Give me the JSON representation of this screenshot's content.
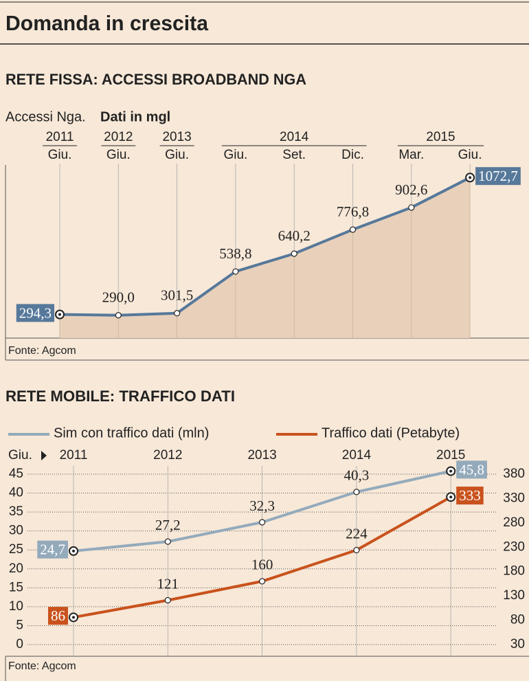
{
  "title": "Domanda in crescita",
  "chart_data": [
    {
      "type": "area",
      "title": "RETE FISSA: ACCESSI BROADBAND NGA",
      "subtitle": "Accessi Nga.",
      "unit_note": "Dati in mgl",
      "years": [
        "2011",
        "2012",
        "2013",
        "2014",
        null,
        null,
        "2015",
        null
      ],
      "categories": [
        "Giu.",
        "Giu.",
        "Giu.",
        "Giu.",
        "Set.",
        "Dic.",
        "Mar.",
        "Giu."
      ],
      "values": [
        294.3,
        290.0,
        301.5,
        538.8,
        640.2,
        776.8,
        902.6,
        1072.7
      ],
      "value_labels": [
        "294,3",
        "290,0",
        "301,5",
        "538,8",
        "640,2",
        "776,8",
        "902,6",
        "1072,7"
      ],
      "color": "#56789a",
      "fill": "#e8d0ba",
      "ylim": [
        160,
        1340
      ],
      "source": "Fonte: Agcom"
    },
    {
      "type": "line",
      "title": "RETE MOBILE: TRAFFICO DATI",
      "x_label": "Giu.",
      "categories": [
        "2011",
        "2012",
        "2013",
        "2014",
        "2015"
      ],
      "series": [
        {
          "name": "Sim con traffico dati (mln)",
          "color": "#93aabb",
          "values": [
            24.7,
            27.2,
            32.3,
            40.3,
            45.8
          ],
          "value_labels": [
            "24,7",
            "27,2",
            "32,3",
            "40,3",
            "45,8"
          ]
        },
        {
          "name": "Traffico dati (Petabyte)",
          "color": "#c9521c",
          "axis": "y2",
          "values": [
            86,
            121,
            160,
            224,
            333
          ]
        }
      ],
      "ylim": [
        0,
        45
      ],
      "yticks": [
        0,
        5,
        10,
        15,
        20,
        25,
        30,
        35,
        40,
        45
      ],
      "y2lim": [
        30,
        380
      ],
      "y2ticks": [
        30,
        80,
        130,
        180,
        230,
        280,
        330,
        380
      ],
      "grid": true,
      "source": "Fonte: Agcom"
    }
  ]
}
